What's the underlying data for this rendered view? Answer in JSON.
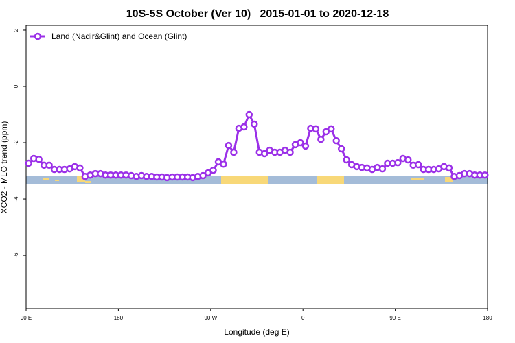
{
  "chart_data": {
    "type": "line",
    "title": "10S-5S October (Ver 10)   2015-01-01 to 2020-12-18",
    "x_label": "Longitude (deg E)",
    "y_label": "XCO2 - MLO trend (ppm)",
    "xlim": [
      90,
      540
    ],
    "xticks": [
      {
        "value": 90,
        "label": "90 E"
      },
      {
        "value": 180,
        "label": "180"
      },
      {
        "value": 270,
        "label": "90 W"
      },
      {
        "value": 360,
        "label": "0"
      },
      {
        "value": 450,
        "label": "90 E"
      },
      {
        "value": 540,
        "label": "180"
      }
    ],
    "ylim": [
      -7.9,
      2.17
    ],
    "yticks": [
      2,
      0,
      -2,
      -4,
      -6
    ],
    "legend": "top-left",
    "x": [
      92.5,
      97.5,
      102.5,
      107.5,
      112.5,
      117.5,
      122.5,
      127.5,
      132.5,
      137.5,
      142.5,
      147.5,
      152.5,
      157.5,
      162.5,
      167.5,
      172.5,
      177.5,
      182.5,
      187.5,
      192.5,
      197.5,
      202.5,
      207.5,
      212.5,
      217.5,
      222.5,
      227.5,
      232.5,
      237.5,
      242.5,
      247.5,
      252.5,
      257.5,
      262.5,
      267.5,
      272.5,
      277.5,
      282.5,
      287.5,
      292.5,
      297.5,
      302.5,
      307.5,
      312.5,
      317.5,
      322.5,
      327.5,
      332.5,
      337.5,
      342.5,
      347.5,
      352.5,
      357.5,
      362.5,
      367.5,
      372.5,
      377.5,
      382.5,
      387.5,
      392.5,
      397.5,
      402.5,
      407.5,
      412.5,
      417.5,
      422.5,
      427.5,
      432.5,
      437.5,
      442.5,
      447.5,
      452.5,
      457.5,
      462.5,
      467.5,
      472.5,
      477.5,
      482.5,
      487.5,
      492.5,
      497.5,
      502.5,
      507.5,
      512.5,
      517.5,
      522.5,
      527.5,
      532.5,
      537.5
    ],
    "series": [
      {
        "name": "Land (Nadir&Glint) and Ocean (Glint)",
        "color": "#9b30e8",
        "values": [
          -2.73,
          -2.56,
          -2.59,
          -2.8,
          -2.8,
          -2.95,
          -2.95,
          -2.95,
          -2.93,
          -2.85,
          -2.9,
          -3.2,
          -3.15,
          -3.1,
          -3.1,
          -3.15,
          -3.15,
          -3.15,
          -3.15,
          -3.15,
          -3.17,
          -3.2,
          -3.17,
          -3.2,
          -3.2,
          -3.22,
          -3.22,
          -3.24,
          -3.22,
          -3.22,
          -3.22,
          -3.22,
          -3.24,
          -3.2,
          -3.17,
          -3.07,
          -2.98,
          -2.68,
          -2.76,
          -2.1,
          -2.34,
          -1.49,
          -1.44,
          -1.0,
          -1.34,
          -2.34,
          -2.39,
          -2.27,
          -2.34,
          -2.34,
          -2.27,
          -2.34,
          -2.07,
          -2.0,
          -2.12,
          -1.49,
          -1.51,
          -1.88,
          -1.61,
          -1.51,
          -1.93,
          -2.22,
          -2.61,
          -2.78,
          -2.85,
          -2.88,
          -2.9,
          -2.95,
          -2.88,
          -2.93,
          -2.73,
          -2.73,
          -2.71,
          -2.56,
          -2.61,
          -2.8,
          -2.78,
          -2.95,
          -2.95,
          -2.95,
          -2.93,
          -2.85,
          -2.9,
          -3.2,
          -3.17,
          -3.1,
          -3.1,
          -3.15,
          -3.15,
          -3.15
        ]
      }
    ]
  }
}
